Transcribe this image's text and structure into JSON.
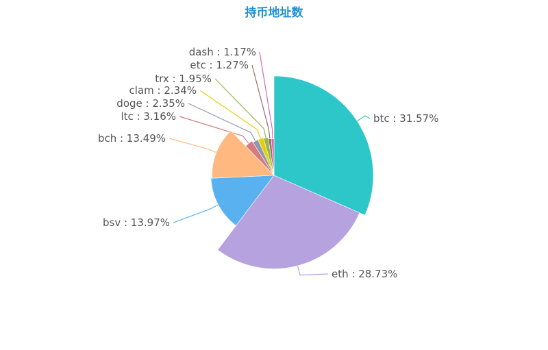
{
  "chart_data": {
    "type": "pie",
    "variant": "rose",
    "title": "持币地址数",
    "title_color": "#1f8fd3",
    "categories": [
      "btc",
      "eth",
      "bsv",
      "bch",
      "ltc",
      "doge",
      "clam",
      "trx",
      "etc",
      "dash"
    ],
    "values": [
      31.57,
      28.73,
      13.97,
      13.49,
      3.16,
      2.35,
      2.34,
      1.95,
      1.27,
      1.17
    ],
    "label_text": [
      "btc : 31.57%",
      "eth : 28.73%",
      "bsv : 13.97%",
      "bch : 13.49%",
      "ltc : 3.16%",
      "doge : 2.35%",
      "clam : 2.34%",
      "trx : 1.95%",
      "etc : 1.27%",
      "dash : 1.17%"
    ],
    "colors": [
      "#2ec7c9",
      "#b6a2de",
      "#5ab1ef",
      "#ffb980",
      "#d87a80",
      "#8d98b3",
      "#e5cf0d",
      "#97b552",
      "#95706d",
      "#dc69aa"
    ],
    "legend": "none"
  }
}
